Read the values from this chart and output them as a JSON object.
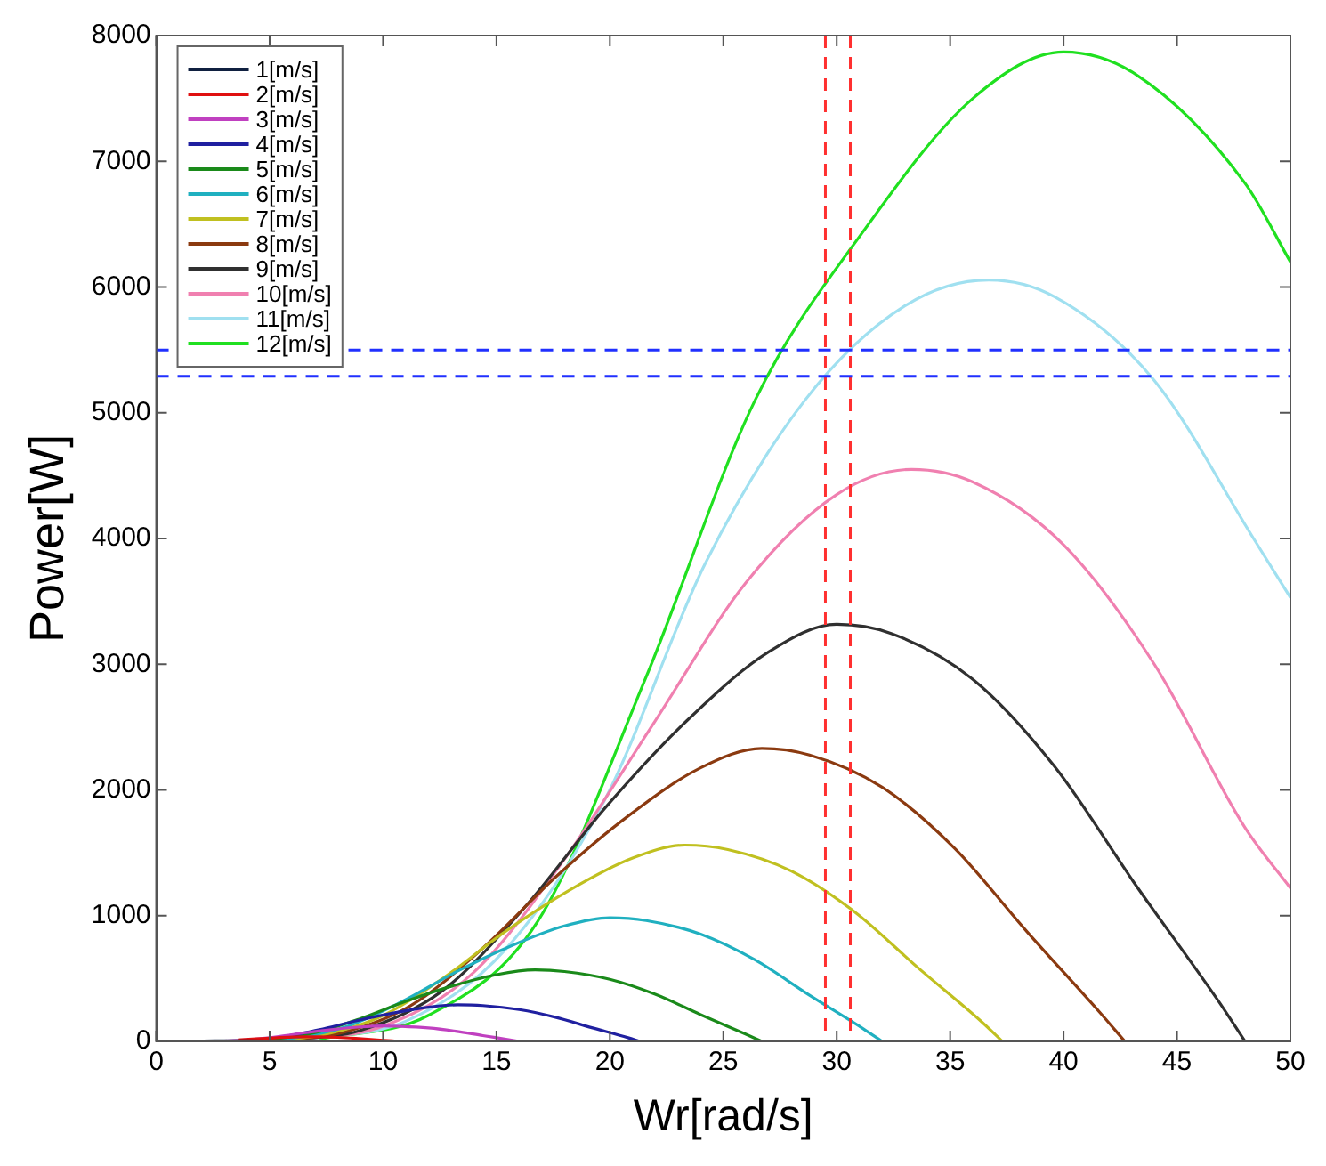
{
  "chart_data": {
    "type": "line",
    "xlabel": "Wr[rad/s]",
    "ylabel": "Power[W]",
    "xlim": [
      0,
      50
    ],
    "xticks": [
      0,
      5,
      10,
      15,
      20,
      25,
      30,
      35,
      40,
      45,
      50
    ],
    "ylim": [
      0,
      8000
    ],
    "yticks": [
      0,
      1000,
      2000,
      3000,
      4000,
      5000,
      6000,
      7000,
      8000
    ],
    "grid": false,
    "legend": "top left",
    "marker": "none",
    "line_style": "solid",
    "series": [
      {
        "name": "1[m/s]",
        "color": "#102040",
        "x": [
          1,
          1.8,
          2.6,
          3.3,
          4,
          4.8,
          5.3
        ],
        "values": [
          0,
          2,
          4,
          5,
          4,
          2,
          0
        ]
      },
      {
        "name": "2[m/s]",
        "color": "#e01010",
        "x": [
          3.6,
          4.4,
          5.2,
          6,
          6.7,
          7.2,
          8,
          8.8,
          9.6,
          10.4,
          10.7
        ],
        "values": [
          12,
          20,
          28,
          34,
          36,
          36,
          32,
          24,
          14,
          4,
          0
        ]
      },
      {
        "name": "3[m/s]",
        "color": "#c040c0",
        "x": [
          1.8,
          3,
          4.2,
          5.4,
          6.6,
          7.8,
          9,
          10,
          10.8,
          12,
          13.2,
          14.4,
          15.6,
          16
        ],
        "values": [
          0,
          3,
          15,
          39,
          69,
          95,
          115,
          123,
          120,
          107,
          81,
          46,
          12,
          0
        ]
      },
      {
        "name": "4[m/s]",
        "color": "#2020a0",
        "x": [
          5.6,
          7.2,
          8.8,
          10.4,
          12,
          13.3,
          14.4,
          16,
          17.6,
          19.2,
          20.8,
          21.3
        ],
        "values": [
          35,
          93,
          163,
          224,
          272,
          291,
          285,
          253,
          192,
          109,
          29,
          0
        ]
      },
      {
        "name": "5[m/s]",
        "color": "#1a8a1a",
        "x": [
          3,
          5,
          7,
          9,
          11,
          13,
          15,
          16.7,
          18,
          20,
          22,
          24,
          26,
          26.7
        ],
        "values": [
          1,
          15,
          69,
          181,
          319,
          438,
          531,
          569,
          556,
          494,
          375,
          213,
          56,
          0
        ]
      },
      {
        "name": "6[m/s]",
        "color": "#20b0c0",
        "x": [
          3.6,
          6,
          8.4,
          10.8,
          13.2,
          15.6,
          18,
          20,
          21.6,
          24,
          26.4,
          28.8,
          31.2,
          32
        ],
        "values": [
          2,
          26,
          119,
          313,
          551,
          756,
          918,
          983,
          961,
          853,
          648,
          367,
          97,
          0
        ]
      },
      {
        "name": "7[m/s]",
        "color": "#c0c020",
        "x": [
          4.2,
          7,
          9.8,
          12.6,
          15.4,
          18.2,
          21,
          23.3,
          25.2,
          28,
          30.8,
          33.6,
          36.4,
          37.3
        ],
        "values": [
          3,
          41,
          189,
          497,
          875,
          1201,
          1458,
          1561,
          1526,
          1355,
          1029,
          583,
          154,
          0
        ]
      },
      {
        "name": "8[m/s]",
        "color": "#8b3a10",
        "x": [
          4.8,
          8,
          11.2,
          14.4,
          17.6,
          20.8,
          24,
          26.7,
          28.8,
          32,
          35.2,
          38.4,
          41.6,
          42.7
        ],
        "values": [
          5,
          61,
          282,
          742,
          1306,
          1792,
          2176,
          2330,
          2278,
          2022,
          1536,
          870,
          230,
          0
        ]
      },
      {
        "name": "9[m/s]",
        "color": "#303030",
        "x": [
          5.4,
          9,
          12.6,
          16.2,
          19.8,
          23.4,
          27,
          30,
          32.4,
          36,
          39.6,
          43.2,
          46.8,
          48
        ],
        "values": [
          7,
          87,
          401,
          1057,
          1859,
          2552,
          3098,
          3317,
          3244,
          2880,
          2187,
          1239,
          328,
          0
        ]
      },
      {
        "name": "10[m/s]",
        "color": "#f080b0",
        "x": [
          6,
          10,
          14,
          18,
          22,
          26,
          30,
          33.3,
          36,
          40,
          44,
          48,
          50
        ],
        "values": [
          10,
          120,
          550,
          1450,
          2550,
          3650,
          4350,
          4550,
          4450,
          3950,
          3000,
          1700,
          1220
        ]
      },
      {
        "name": "11[m/s]",
        "color": "#a0e0f0",
        "x": [
          6.6,
          11,
          15.4,
          19.8,
          24.2,
          28.6,
          33,
          36.7,
          39.6,
          44,
          48.4,
          50
        ],
        "values": [
          13,
          160,
          732,
          1930,
          3800,
          5100,
          5850,
          6056,
          5923,
          5257,
          3993,
          3530
        ]
      },
      {
        "name": "12[m/s]",
        "color": "#20e020",
        "x": [
          7.2,
          12,
          16.8,
          21.6,
          26.4,
          31.2,
          36,
          40,
          43.2,
          48,
          50
        ],
        "values": [
          17,
          207,
          950,
          2900,
          5100,
          6450,
          7500,
          7870,
          7690,
          6826,
          6200
        ]
      }
    ],
    "ref_lines": [
      {
        "axis": "x",
        "value": 29.5,
        "color": "#ff3030",
        "line_style": "dashed"
      },
      {
        "axis": "x",
        "value": 30.6,
        "color": "#ff3030",
        "line_style": "dashed"
      },
      {
        "axis": "y",
        "value": 5500,
        "color": "#2030ff",
        "line_style": "dashed"
      },
      {
        "axis": "y",
        "value": 5290,
        "color": "#2030ff",
        "line_style": "dashed"
      }
    ]
  }
}
